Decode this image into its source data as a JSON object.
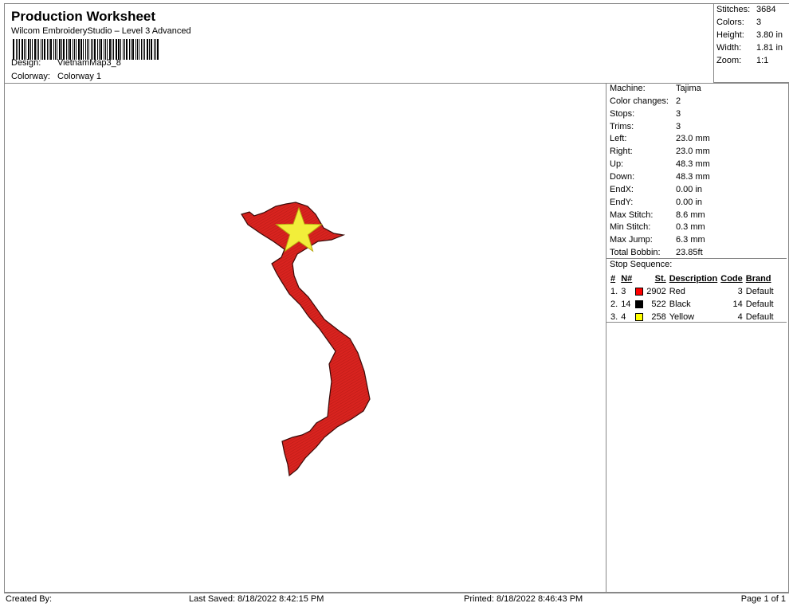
{
  "header": {
    "title": "Production Worksheet",
    "subtitle": "Wilcom EmbroideryStudio – Level 3 Advanced",
    "design_label": "Design:",
    "design": "VietnamMap3_8",
    "colorway_label": "Colorway:",
    "colorway": "Colorway 1"
  },
  "summary": [
    {
      "k": "Stitches:",
      "v": "3684"
    },
    {
      "k": "Colors:",
      "v": "3"
    },
    {
      "k": "Height:",
      "v": "3.80 in"
    },
    {
      "k": "Width:",
      "v": "1.81 in"
    },
    {
      "k": "Zoom:",
      "v": "1:1"
    }
  ],
  "machine": [
    {
      "k": "Machine:",
      "v": "Tajima"
    },
    {
      "k": "Color changes:",
      "v": "2"
    },
    {
      "k": "Stops:",
      "v": "3"
    },
    {
      "k": "Trims:",
      "v": "3"
    },
    {
      "k": "Left:",
      "v": "23.0 mm"
    },
    {
      "k": "Right:",
      "v": "23.0 mm"
    },
    {
      "k": "Up:",
      "v": "48.3 mm"
    },
    {
      "k": "Down:",
      "v": "48.3 mm"
    },
    {
      "k": "EndX:",
      "v": "0.00 in"
    },
    {
      "k": "EndY:",
      "v": "0.00 in"
    },
    {
      "k": "Max Stitch:",
      "v": "8.6 mm"
    },
    {
      "k": "Min Stitch:",
      "v": "0.3 mm"
    },
    {
      "k": "Max Jump:",
      "v": "6.3 mm"
    },
    {
      "k": "Total Bobbin:",
      "v": "23.85ft"
    }
  ],
  "stop_sequence": {
    "title": "Stop Sequence:",
    "headers": [
      "#",
      "N#",
      "",
      "St.",
      "Description",
      "Code",
      "Brand"
    ],
    "rows": [
      {
        "num": "1.",
        "n": "3",
        "color": "#ff0000",
        "st": "2902",
        "desc": "Red",
        "code": "3",
        "brand": "Default"
      },
      {
        "num": "2.",
        "n": "14",
        "color": "#000000",
        "st": "522",
        "desc": "Black",
        "code": "14",
        "brand": "Default"
      },
      {
        "num": "3.",
        "n": "4",
        "color": "#ffff00",
        "st": "258",
        "desc": "Yellow",
        "code": "4",
        "brand": "Default"
      }
    ]
  },
  "design_colors": {
    "fill": "#d8231f",
    "outline": "#3a0a08",
    "star": "#f2ee3a"
  },
  "footer": {
    "created": "Created By:",
    "saved": "Last Saved: 8/18/2022 8:42:15 PM",
    "printed": "Printed: 8/18/2022 8:46:43 PM",
    "page": "Page 1 of 1"
  }
}
